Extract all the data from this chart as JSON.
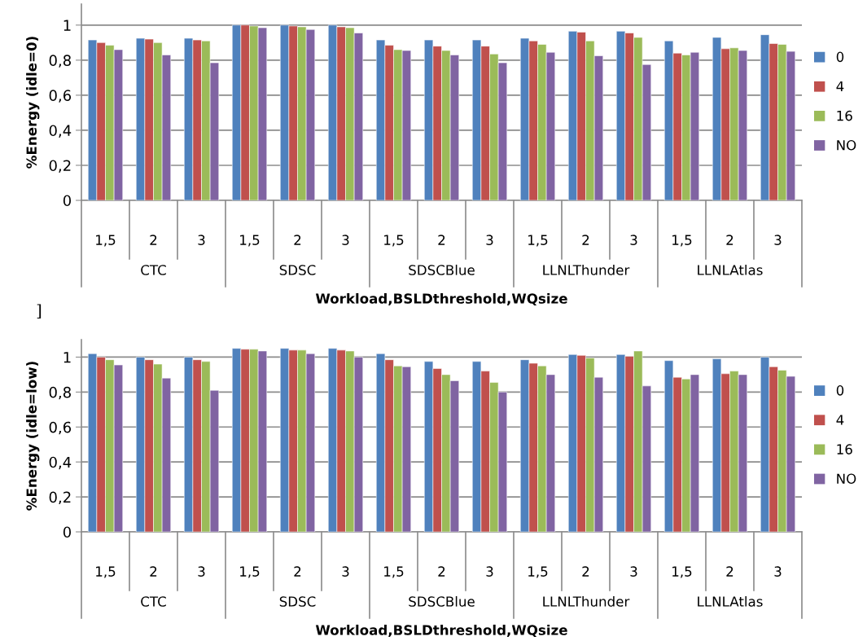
{
  "chart_data": [
    {
      "type": "bar",
      "ylabel": "%Energy (idle=0)",
      "xlabel": "Workload,BSLDthreshold,WQsize",
      "categories": [
        "1,5",
        "2",
        "3",
        "1,5",
        "2",
        "3",
        "1,5",
        "2",
        "3",
        "1,5",
        "2",
        "3",
        "1,5",
        "2",
        "3"
      ],
      "series": [
        {
          "name": "0",
          "color": "#4f81bd",
          "values": [
            0.915,
            0.925,
            0.925,
            1.0,
            1.0,
            1.0,
            0.915,
            0.915,
            0.915,
            0.925,
            0.965,
            0.965,
            0.91,
            0.93,
            0.945
          ]
        },
        {
          "name": "4",
          "color": "#c0504d",
          "values": [
            0.9,
            0.92,
            0.915,
            1.0,
            0.995,
            0.99,
            0.885,
            0.88,
            0.88,
            0.91,
            0.96,
            0.955,
            0.84,
            0.865,
            0.895
          ]
        },
        {
          "name": "16",
          "color": "#9bbb59",
          "values": [
            0.885,
            0.9,
            0.91,
            0.995,
            0.99,
            0.985,
            0.86,
            0.855,
            0.835,
            0.89,
            0.91,
            0.93,
            0.83,
            0.87,
            0.89
          ]
        },
        {
          "name": "NO",
          "color": "#8064a2",
          "values": [
            0.86,
            0.83,
            0.785,
            0.985,
            0.975,
            0.955,
            0.855,
            0.83,
            0.785,
            0.845,
            0.825,
            0.775,
            0.845,
            0.855,
            0.85
          ]
        }
      ],
      "annotations": [
        "CTC",
        "SDSC",
        "SDSCBlue",
        "LLNLThunder",
        "LLNLAtlas",
        "]"
      ],
      "ylim": [
        0,
        1.12
      ],
      "yticks": [
        0,
        {
          "value": 0.2,
          "label": "0,2"
        },
        {
          "value": 0.4,
          "label": "0,4"
        },
        {
          "value": 0.6,
          "label": "0,6"
        },
        {
          "value": 0.8,
          "label": "0,8"
        },
        1
      ],
      "grid": "y",
      "legend": "right"
    },
    {
      "type": "bar",
      "ylabel": "%Energy (idle=low)",
      "xlabel": "Workload,BSLDthreshold,WQsize",
      "categories": [
        "1,5",
        "2",
        "3",
        "1,5",
        "2",
        "3",
        "1,5",
        "2",
        "3",
        "1,5",
        "2",
        "3",
        "1,5",
        "2",
        "3"
      ],
      "series": [
        {
          "name": "0",
          "color": "#4f81bd",
          "values": [
            1.02,
            1.0,
            1.0,
            1.05,
            1.05,
            1.05,
            1.02,
            0.975,
            0.975,
            0.985,
            1.015,
            1.015,
            0.98,
            0.99,
            1.0
          ]
        },
        {
          "name": "4",
          "color": "#c0504d",
          "values": [
            1.0,
            0.985,
            0.985,
            1.045,
            1.04,
            1.04,
            0.985,
            0.935,
            0.92,
            0.965,
            1.01,
            1.005,
            0.885,
            0.905,
            0.945
          ]
        },
        {
          "name": "16",
          "color": "#9bbb59",
          "values": [
            0.985,
            0.96,
            0.975,
            1.045,
            1.04,
            1.035,
            0.95,
            0.9,
            0.855,
            0.95,
            0.995,
            1.035,
            0.875,
            0.92,
            0.925
          ]
        },
        {
          "name": "NO",
          "color": "#8064a2",
          "values": [
            0.955,
            0.88,
            0.81,
            1.035,
            1.02,
            1.0,
            0.945,
            0.865,
            0.8,
            0.9,
            0.885,
            0.835,
            0.9,
            0.9,
            0.89
          ]
        }
      ],
      "annotations": [
        "CTC",
        "SDSC",
        "SDSCBlue",
        "LLNLThunder",
        "LLNLAtlas"
      ],
      "ylim": [
        0,
        1.1
      ],
      "yticks": [
        0,
        {
          "value": 0.2,
          "label": "0,2"
        },
        {
          "value": 0.4,
          "label": "0,4"
        },
        {
          "value": 0.6,
          "label": "0,6"
        },
        {
          "value": 0.8,
          "label": "0,8"
        },
        1
      ],
      "grid": "y",
      "legend": "right"
    }
  ]
}
